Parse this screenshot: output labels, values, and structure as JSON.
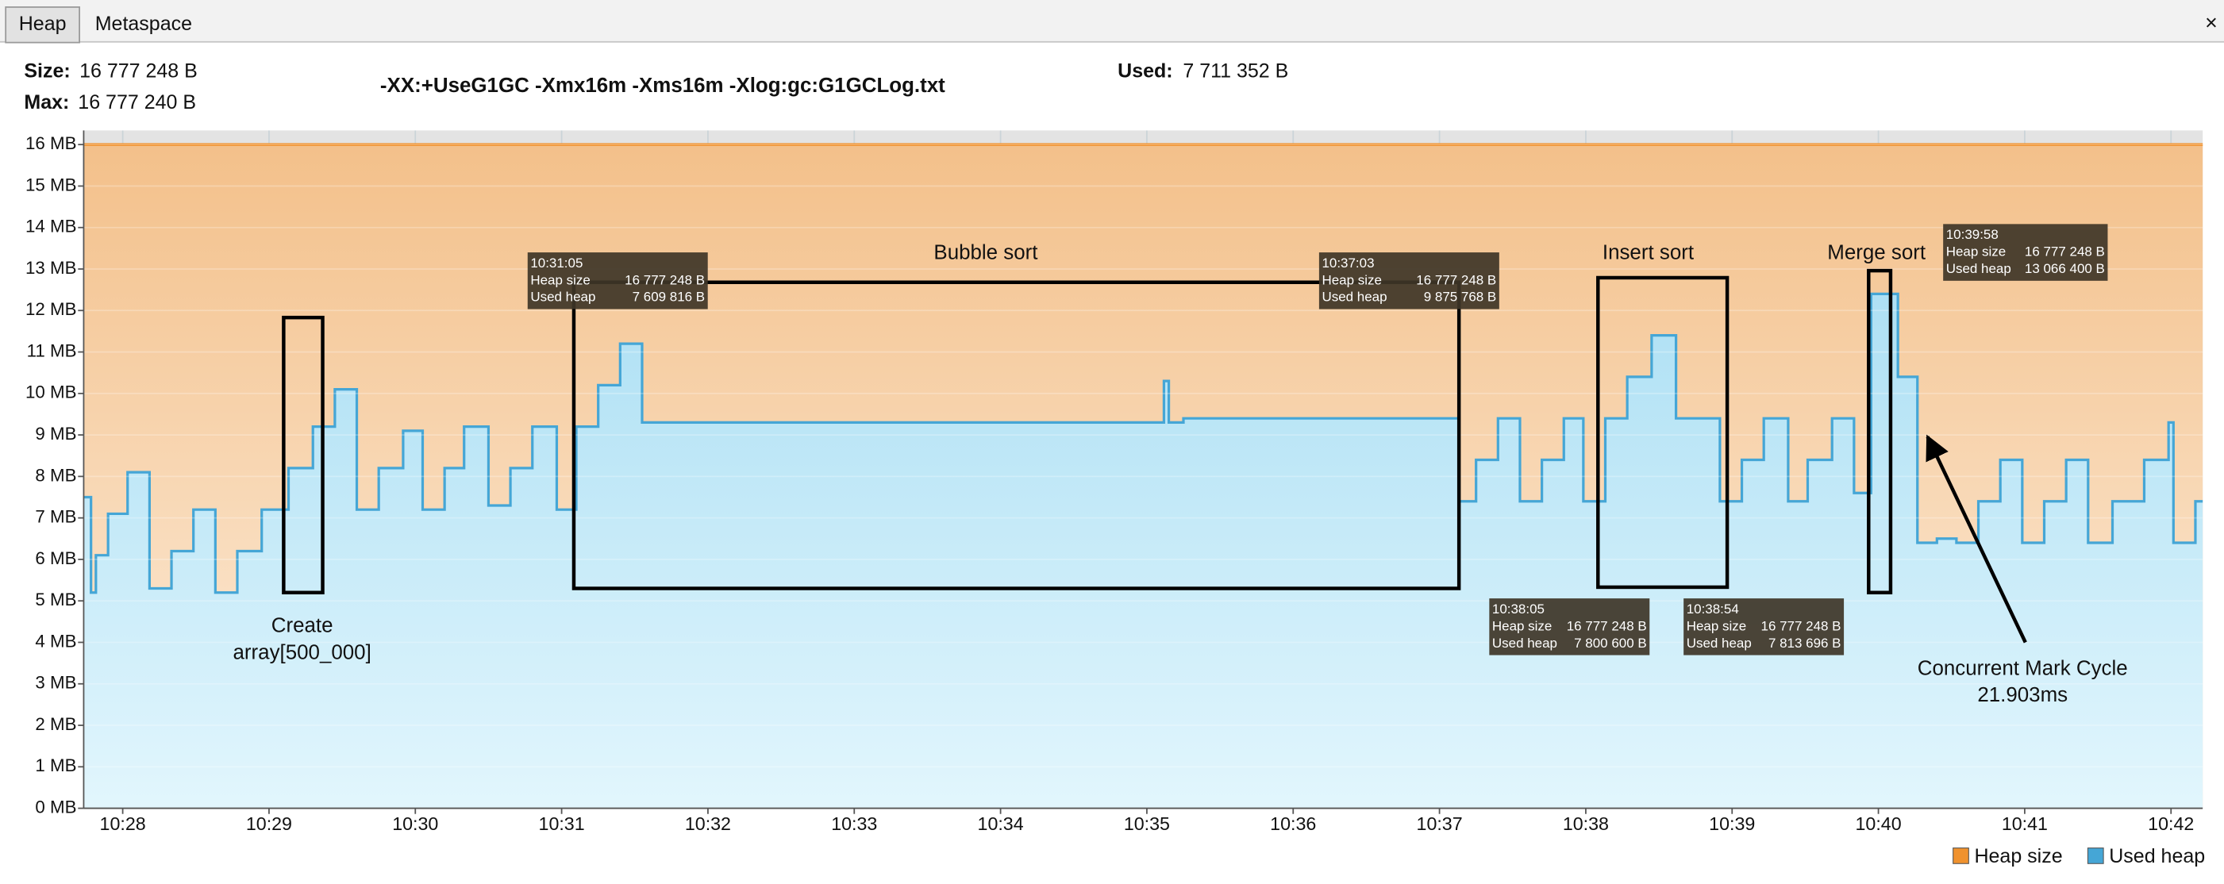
{
  "tabs": [
    "Heap",
    "Metaspace"
  ],
  "info": {
    "size_label": "Size:",
    "size": "16 777 248 B",
    "max_label": "Max:",
    "max": "16 777 240 B",
    "jvm_args": "-XX:+UseG1GC -Xmx16m -Xms16m -Xlog:gc:G1GCLog.txt",
    "used_label": "Used:",
    "used": "7 711 352 B"
  },
  "chart_data": {
    "type": "area",
    "step": true,
    "grid": true,
    "legend": "bottom-right",
    "x": [
      "10:27:44",
      "10:27:47",
      "10:27:49",
      "10:27:54",
      "10:28:02",
      "10:28:11",
      "10:28:20",
      "10:28:29",
      "10:28:38",
      "10:28:47",
      "10:28:57",
      "10:29:08",
      "10:29:18",
      "10:29:27",
      "10:29:36",
      "10:29:45",
      "10:29:55",
      "10:30:03",
      "10:30:12",
      "10:30:20",
      "10:30:30",
      "10:30:39",
      "10:30:48",
      "10:30:58",
      "10:31:06",
      "10:31:15",
      "10:31:24",
      "10:31:33",
      "10:35:07",
      "10:35:09",
      "10:35:15",
      "10:37:08",
      "10:37:15",
      "10:37:24",
      "10:37:33",
      "10:37:42",
      "10:37:51",
      "10:37:59",
      "10:38:08",
      "10:38:17",
      "10:38:27",
      "10:38:37",
      "10:38:55",
      "10:39:04",
      "10:39:13",
      "10:39:23",
      "10:39:31",
      "10:39:41",
      "10:39:50",
      "10:39:57",
      "10:40:08",
      "10:40:16",
      "10:40:24",
      "10:40:32",
      "10:40:41",
      "10:40:50",
      "10:40:59",
      "10:41:08",
      "10:41:17",
      "10:41:26",
      "10:41:36",
      "10:41:49",
      "10:41:59",
      "10:42:01",
      "10:42:10",
      "10:42:13"
    ],
    "series": [
      {
        "name": "Heap size",
        "color": "#f0922e",
        "x": [
          "10:27:44",
          "10:42:13"
        ],
        "values": [
          16,
          16
        ]
      },
      {
        "name": "Used heap",
        "color": "#45a6d6",
        "values": [
          7.5,
          5.2,
          6.1,
          7.1,
          8.1,
          5.3,
          6.2,
          7.2,
          5.2,
          6.2,
          7.2,
          8.2,
          9.2,
          10.1,
          7.2,
          8.2,
          9.1,
          7.2,
          8.2,
          9.2,
          7.3,
          8.2,
          9.2,
          7.2,
          9.2,
          10.2,
          11.2,
          9.3,
          10.3,
          9.3,
          9.4,
          7.4,
          8.4,
          9.4,
          7.4,
          8.4,
          9.4,
          7.4,
          9.4,
          10.4,
          11.4,
          9.4,
          7.4,
          8.4,
          9.4,
          7.4,
          8.4,
          9.4,
          7.6,
          12.4,
          10.4,
          6.4,
          6.5,
          6.4,
          7.4,
          8.4,
          6.4,
          7.4,
          8.4,
          6.4,
          7.4,
          8.4,
          9.3,
          6.4,
          7.4,
          7.4
        ]
      }
    ],
    "xlim": [
      "10:27:44",
      "10:42:13"
    ],
    "xticks": [
      "10:28",
      "10:29",
      "10:30",
      "10:31",
      "10:32",
      "10:33",
      "10:34",
      "10:35",
      "10:36",
      "10:37",
      "10:38",
      "10:39",
      "10:40",
      "10:41",
      "10:42"
    ],
    "ylim": [
      0,
      16.34
    ],
    "yticks": [
      {
        "value": 0,
        "label": "0 MB"
      },
      {
        "value": 1,
        "label": "1 MB"
      },
      {
        "value": 2,
        "label": "2 MB"
      },
      {
        "value": 3,
        "label": "3 MB"
      },
      {
        "value": 4,
        "label": "4 MB"
      },
      {
        "value": 5,
        "label": "5 MB"
      },
      {
        "value": 6,
        "label": "6 MB"
      },
      {
        "value": 7,
        "label": "7 MB"
      },
      {
        "value": 8,
        "label": "8 MB"
      },
      {
        "value": 9,
        "label": "9 MB"
      },
      {
        "value": 10,
        "label": "10 MB"
      },
      {
        "value": 11,
        "label": "11 MB"
      },
      {
        "value": 12,
        "label": "12 MB"
      },
      {
        "value": 13,
        "label": "13 MB"
      },
      {
        "value": 14,
        "label": "14 MB"
      },
      {
        "value": 15,
        "label": "15 MB"
      },
      {
        "value": 16,
        "label": "16 MB"
      }
    ],
    "annotations": [
      {
        "lines": [
          "Create",
          "array[500_000]"
        ],
        "x": [
          "10:29:06",
          "10:29:22"
        ],
        "y": [
          5.2,
          11.83
        ]
      },
      {
        "lines": [
          "Bubble sort"
        ],
        "x": [
          "10:31:05",
          "10:37:08"
        ],
        "y": [
          5.3,
          12.68
        ]
      },
      {
        "lines": [
          "Insert sort"
        ],
        "x": [
          "10:38:05",
          "10:38:58"
        ],
        "y": [
          5.33,
          12.79
        ]
      },
      {
        "lines": [
          "Merge sort"
        ],
        "x": [
          "10:39:56",
          "10:40:05"
        ],
        "y": [
          5.2,
          12.96
        ]
      }
    ],
    "note": [
      "Concurrent Mark Cycle",
      "21.903ms"
    ],
    "tooltips": [
      {
        "time": "10:31:05",
        "heap": "16 777 248 B",
        "used": "7 609 816 B"
      },
      {
        "time": "10:37:03",
        "heap": "16 777 248 B",
        "used": "9 875 768 B"
      },
      {
        "time": "10:38:05",
        "heap": "16 777 248 B",
        "used": "7 800 600 B"
      },
      {
        "time": "10:38:54",
        "heap": "16 777 248 B",
        "used": "7 813 696 B"
      },
      {
        "time": "10:39:58",
        "heap": "16 777 248 B",
        "used": "13 066 400 B"
      }
    ]
  }
}
